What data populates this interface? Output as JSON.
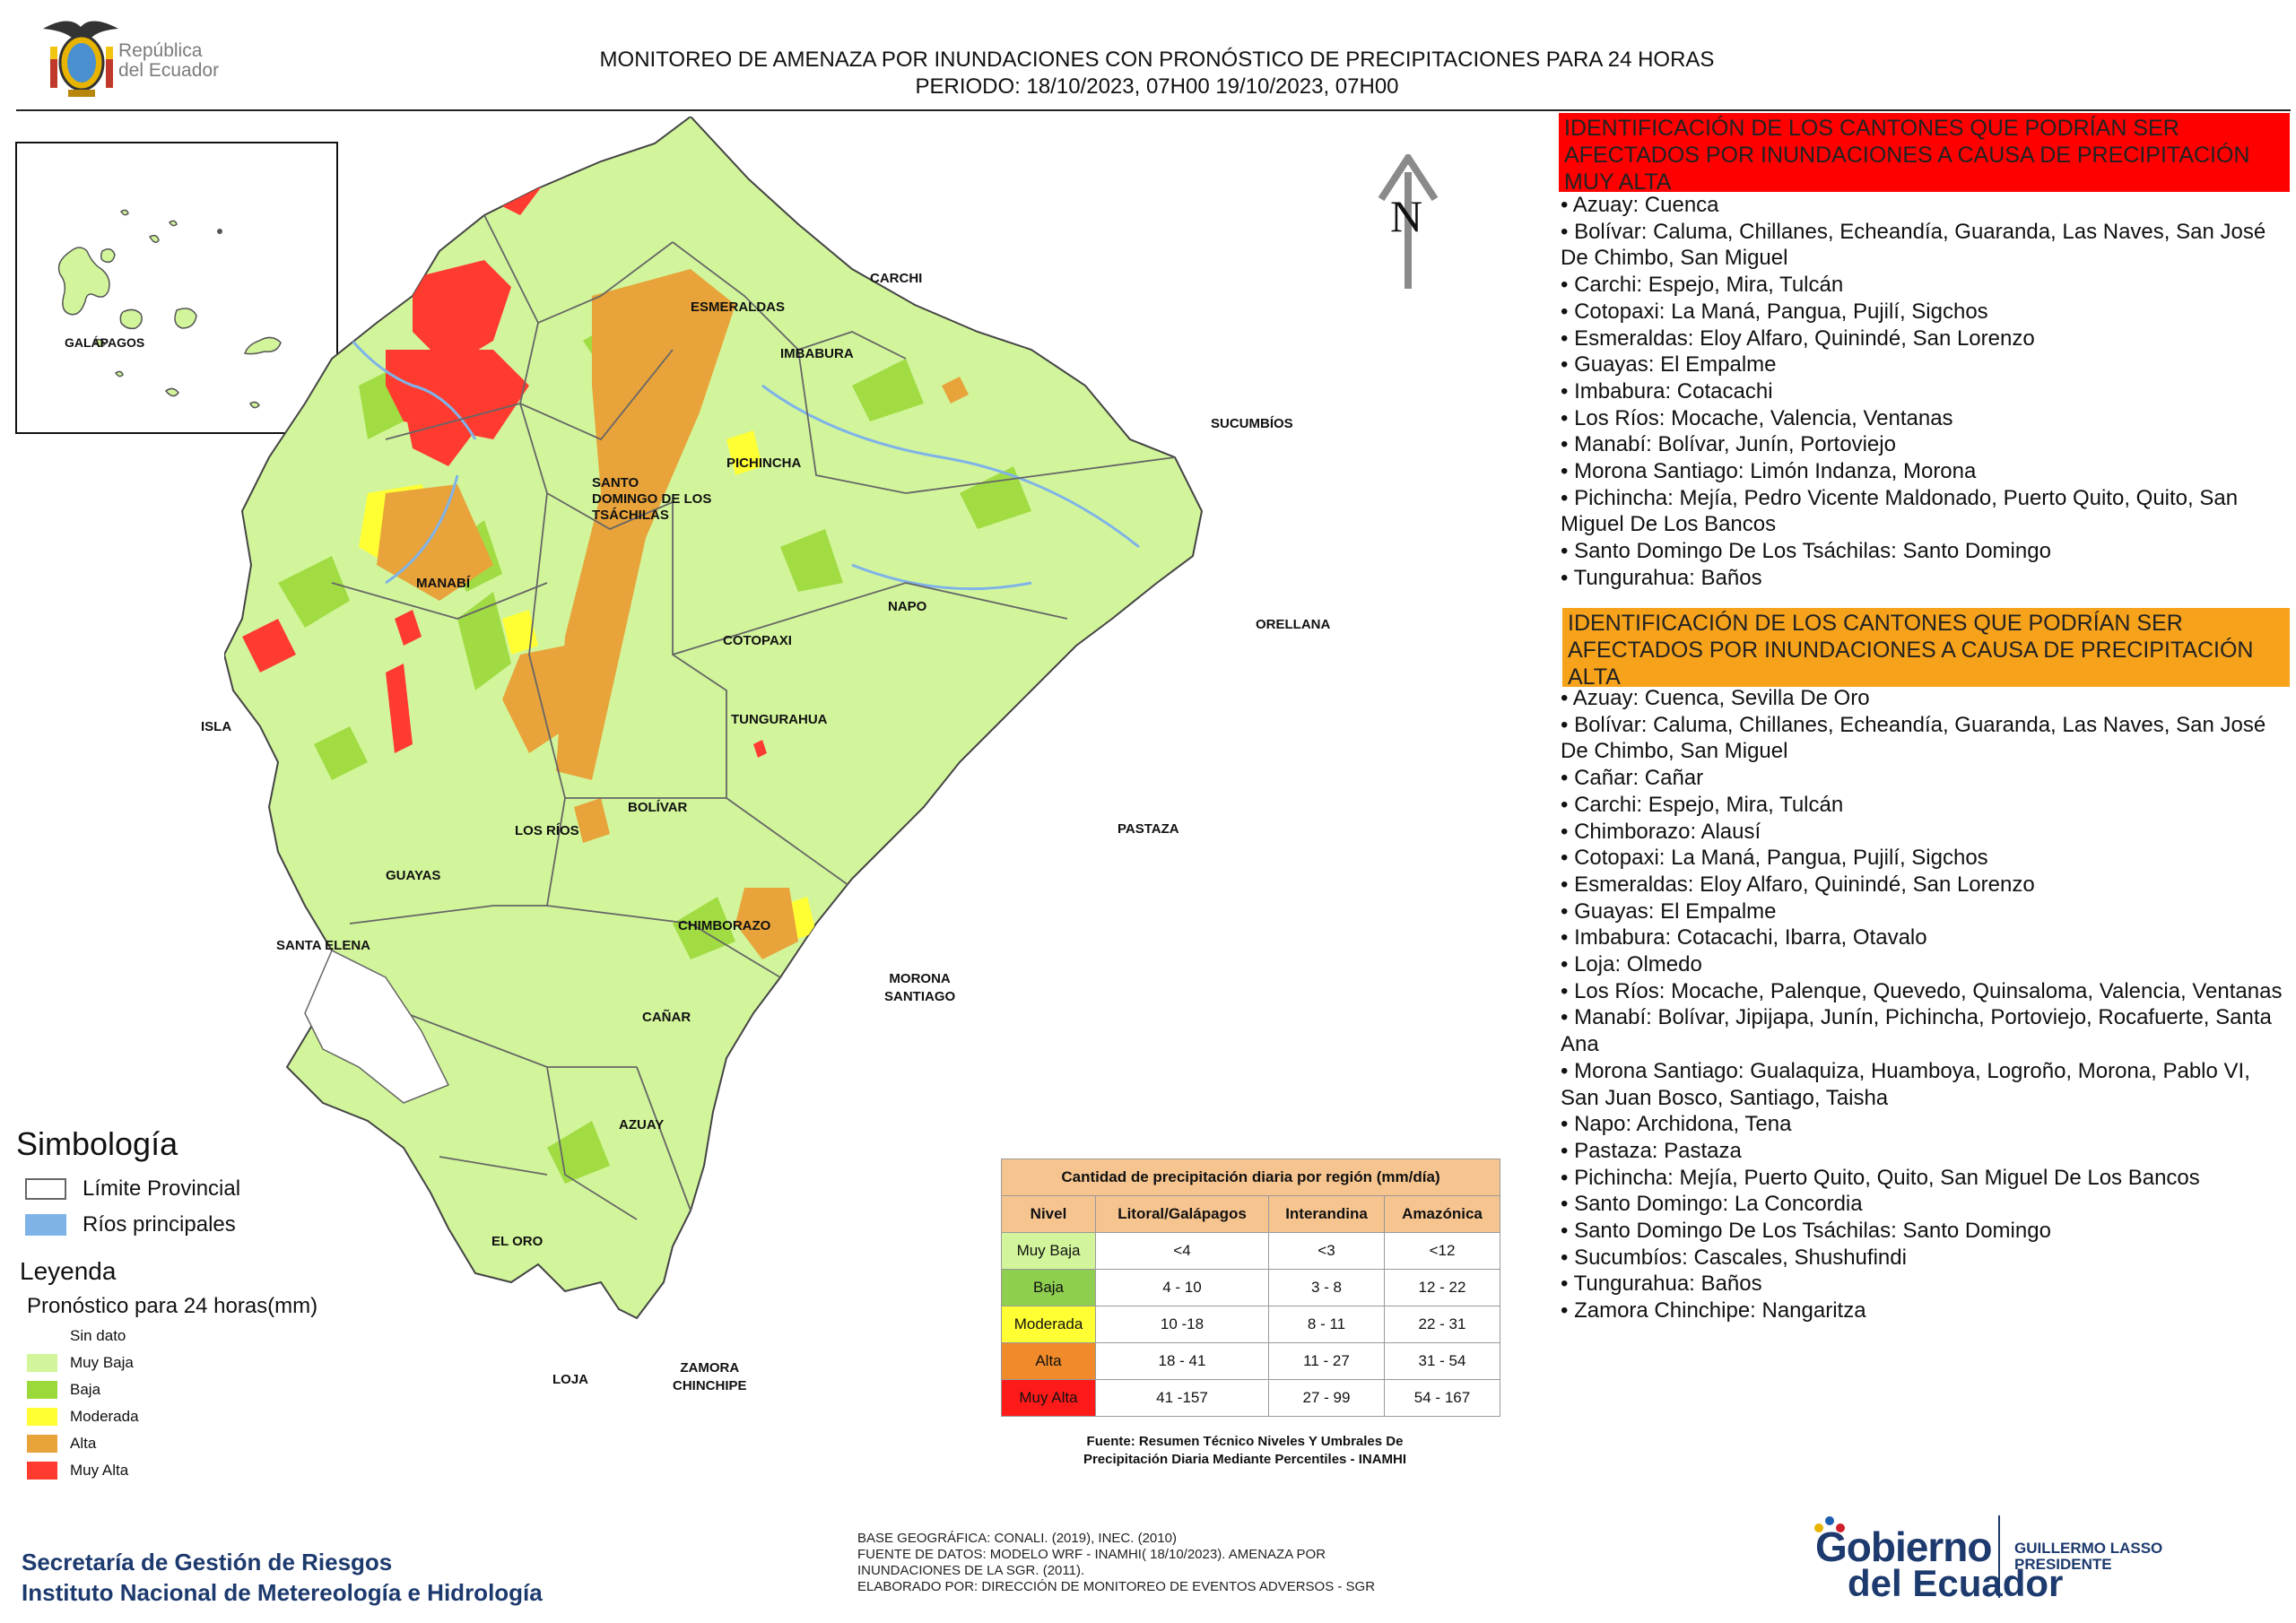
{
  "header": {
    "country_logo_text": [
      "República",
      "del Ecuador"
    ],
    "title_line1": "MONITOREO DE AMENAZA POR INUNDACIONES  CON PRONÓSTICO DE  PRECIPITACIONES PARA 24 HORAS",
    "title_line2": "PERIODO: 18/10/2023, 07H00 19/10/2023, 07H00"
  },
  "inset": {
    "label": "GALÁPAGOS"
  },
  "map": {
    "north_label": "N",
    "labels": {
      "carchi": "CARCHI",
      "esmeraldas": "ESMERALDAS",
      "imbabura": "IMBABURA",
      "sucumbios": "SUCUMBÍOS",
      "santo_domingo": [
        "SANTO",
        "DOMINGO DE LOS",
        "TSÁCHILAS"
      ],
      "pichincha": "PICHINCHA",
      "manabi": "MANABÍ",
      "napo": "NAPO",
      "orellana": "ORELLANA",
      "cotopaxi": "COTOPAXI",
      "isla": "ISLA",
      "tungurahua": "TUNGURAHUA",
      "bolivar": "BOLÍVAR",
      "los_rios": "LOS RÍOS",
      "pastaza": "PASTAZA",
      "guayas": "GUAYAS",
      "santa_elena": "SANTA ELENA",
      "chimborazo": "CHIMBORAZO",
      "morona": [
        "MORONA",
        "SANTIAGO"
      ],
      "canar": "CAÑAR",
      "azuay": "AZUAY",
      "el_oro": "EL ORO",
      "loja": "LOJA",
      "zamora": [
        "ZAMORA",
        "CHINCHIPE"
      ]
    }
  },
  "simbologia": {
    "title": "Simbología",
    "items": [
      {
        "label": "Límite Provincial",
        "color": "#ffffff"
      },
      {
        "label": "Ríos principales",
        "color": "#7fb3e8"
      }
    ]
  },
  "leyenda": {
    "title": "Leyenda",
    "subtitle": "Pronóstico para 24 horas(mm)",
    "items": [
      {
        "label": "Sin dato",
        "color": "#ffffff"
      },
      {
        "label": "Muy Baja",
        "color": "#d2f59b"
      },
      {
        "label": "Baja",
        "color": "#9bd93a"
      },
      {
        "label": "Moderada",
        "color": "#ffff33"
      },
      {
        "label": "Alta",
        "color": "#e8a33a"
      },
      {
        "label": "Muy Alta",
        "color": "#ff3b30"
      }
    ]
  },
  "precip_table": {
    "title": "Cantidad de precipitación diaria por región (mm/día)",
    "headers": [
      "Nivel",
      "Litoral/Galápagos",
      "Interandina",
      "Amazónica"
    ],
    "rows": [
      {
        "level": "Muy Baja",
        "color": "#d2f59b",
        "values": [
          "<4",
          "<3",
          "<12"
        ]
      },
      {
        "level": "Baja",
        "color": "#8fcf4f",
        "values": [
          "4 - 10",
          "3 - 8",
          "12 - 22"
        ]
      },
      {
        "level": "Moderada",
        "color": "#ffff33",
        "values": [
          "10 -18",
          "8 - 11",
          "22 - 31"
        ]
      },
      {
        "level": "Alta",
        "color": "#f08a2a",
        "values": [
          "18 - 41",
          "11 - 27",
          "31 - 54"
        ]
      },
      {
        "level": "Muy Alta",
        "color": "#ff1a1a",
        "values": [
          "41 -157",
          "27 - 99",
          "54 - 167"
        ]
      }
    ],
    "source": [
      "Fuente: Resumen Técnico Niveles Y Umbrales De",
      "Precipitación Diaria Mediante Percentiles - INAMHI"
    ]
  },
  "panel_muy_alta": {
    "header": "IDENTIFICACIÓN DE LOS CANTONES QUE PODRÍAN SER AFECTADOS POR INUNDACIONES  A CAUSA DE PRECIPITACIÓN MUY ALTA",
    "color": "#ff0000",
    "items": [
      "• Azuay: Cuenca",
      "• Bolívar: Caluma, Chillanes, Echeandía, Guaranda, Las Naves, San José De Chimbo, San Miguel",
      "• Carchi: Espejo, Mira, Tulcán",
      "• Cotopaxi: La Maná, Pangua, Pujilí, Sigchos",
      "• Esmeraldas: Eloy Alfaro, Quinindé, San Lorenzo",
      "• Guayas: El Empalme",
      "• Imbabura: Cotacachi",
      "• Los Ríos: Mocache, Valencia, Ventanas",
      "• Manabí: Bolívar, Junín, Portoviejo",
      "• Morona Santiago: Limón Indanza, Morona",
      "• Pichincha: Mejía, Pedro Vicente Maldonado, Puerto Quito, Quito, San Miguel De Los Bancos",
      "• Santo Domingo De Los Tsáchilas: Santo Domingo",
      "• Tungurahua: Baños"
    ]
  },
  "panel_alta": {
    "header": "IDENTIFICACIÓN DE LOS CANTONES QUE  PODRÍAN SER AFECTADOS POR INUNDACIONES  A CAUSA DE PRECIPITACIÓN ALTA",
    "color": "#f7a21b",
    "items": [
      "• Azuay: Cuenca, Sevilla De Oro",
      "• Bolívar: Caluma, Chillanes, Echeandía, Guaranda, Las Naves, San José De Chimbo, San Miguel",
      "• Cañar: Cañar",
      "• Carchi: Espejo, Mira, Tulcán",
      "• Chimborazo: Alausí",
      "• Cotopaxi: La Maná, Pangua, Pujilí, Sigchos",
      "• Esmeraldas: Eloy Alfaro, Quinindé, San Lorenzo",
      "• Guayas: El Empalme",
      "• Imbabura: Cotacachi, Ibarra, Otavalo",
      "• Loja: Olmedo",
      "• Los Ríos: Mocache, Palenque, Quevedo, Quinsaloma, Valencia, Ventanas",
      "• Manabí: Bolívar, Jipijapa, Junín, Pichincha, Portoviejo, Rocafuerte, Santa Ana",
      "• Morona Santiago: Gualaquiza, Huamboya, Logroño, Morona, Pablo VI, San Juan Bosco, Santiago, Taisha",
      "• Napo: Archidona, Tena",
      "• Pastaza: Pastaza",
      "• Pichincha: Mejía, Puerto Quito, Quito, San Miguel De Los Bancos",
      "• Santo Domingo: La Concordia",
      "• Santo Domingo De Los Tsáchilas: Santo Domingo",
      "• Sucumbíos: Cascales, Shushufindi",
      "• Tungurahua: Baños",
      "• Zamora Chinchipe: Nangaritza"
    ]
  },
  "footer": {
    "org_line1": "Secretaría de Gestión de Riesgos",
    "org_line2": "Instituto Nacional de Metereología e Hidrología",
    "base_lines": [
      "BASE GEOGRÁFICA: CONALI. (2019), INEC. (2010)",
      "FUENTE DE DATOS: MODELO WRF - INAMHI( 18/10/2023).  AMENAZA POR",
      "INUNDACIONES DE LA SGR. (2011).",
      "ELABORADO POR: DIRECCIÓN DE MONITOREO DE EVENTOS ADVERSOS - SGR"
    ],
    "gob_line1": "Gobierno",
    "gob_line2": "del Ecuador",
    "president_line1": "GUILLERMO LASSO",
    "president_line2": "PRESIDENTE"
  }
}
